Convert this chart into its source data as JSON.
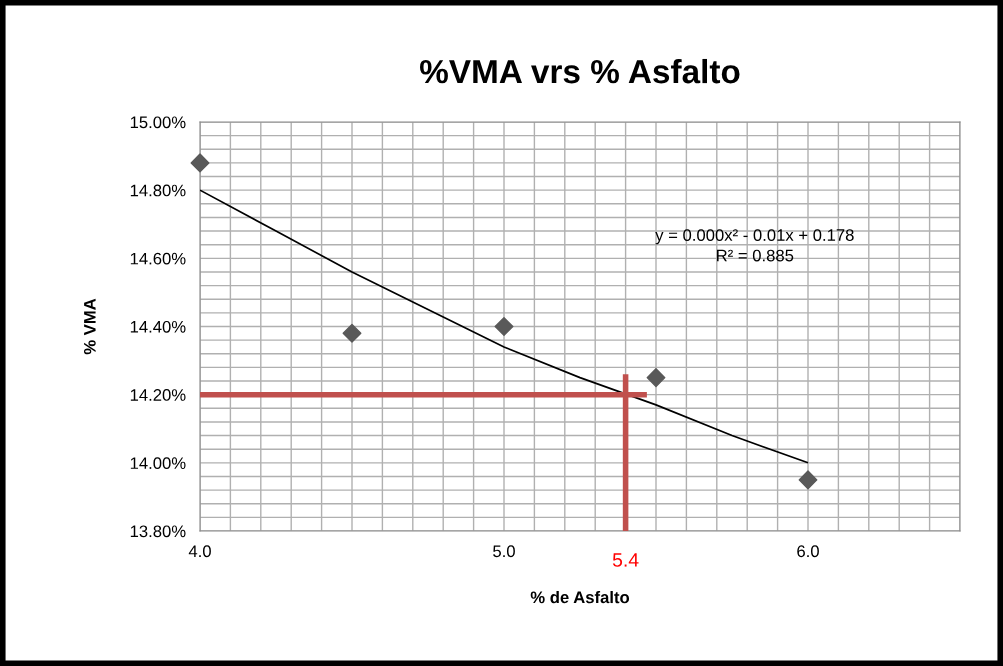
{
  "chart_data": {
    "type": "scatter",
    "title": "%VMA vrs % Asfalto",
    "xlabel": "% de Asfalto",
    "ylabel": "% VMA",
    "x": [
      4.0,
      4.5,
      5.0,
      5.5,
      6.0
    ],
    "series": [
      {
        "color": "#595959",
        "marker": "diamond",
        "values": [
          14.88,
          14.38,
          14.4,
          14.25,
          13.95
        ]
      },
      {
        "type": "line",
        "color": "#000000",
        "marker": "none",
        "x": [
          4.0,
          4.25,
          4.5,
          4.75,
          5.0,
          5.25,
          5.5,
          5.75,
          6.0
        ],
        "values": [
          14.8,
          14.68,
          14.56,
          14.45,
          14.34,
          14.25,
          14.17,
          14.08,
          14.0
        ]
      },
      {
        "type": "line",
        "color": "#c0504d",
        "marker": "none",
        "x": [
          4.0,
          5.47
        ],
        "values": [
          14.2,
          14.2
        ]
      },
      {
        "type": "line",
        "color": "#c0504d",
        "marker": "none",
        "x": [
          5.4,
          5.4
        ],
        "values": [
          13.8,
          14.26
        ]
      }
    ],
    "xlim": [
      4.0,
      6.5
    ],
    "ylim": [
      13.8,
      15.0
    ],
    "xticks": [
      {
        "value": 4.0,
        "label": "4.0"
      },
      {
        "value": 4.1,
        "label": null
      },
      {
        "value": 4.2,
        "label": null
      },
      {
        "value": 4.3,
        "label": null
      },
      {
        "value": 4.4,
        "label": null
      },
      {
        "value": 4.5,
        "label": null
      },
      {
        "value": 4.6,
        "label": null
      },
      {
        "value": 4.7,
        "label": null
      },
      {
        "value": 4.8,
        "label": null
      },
      {
        "value": 4.9,
        "label": null
      },
      {
        "value": 5.0,
        "label": "5.0"
      },
      {
        "value": 5.1,
        "label": null
      },
      {
        "value": 5.2,
        "label": null
      },
      {
        "value": 5.3,
        "label": null
      },
      {
        "value": 5.4,
        "label": null
      },
      {
        "value": 5.5,
        "label": null
      },
      {
        "value": 5.6,
        "label": null
      },
      {
        "value": 5.7,
        "label": null
      },
      {
        "value": 5.8,
        "label": null
      },
      {
        "value": 5.9,
        "label": null
      },
      {
        "value": 6.0,
        "label": "6.0"
      },
      {
        "value": 6.1,
        "label": null
      },
      {
        "value": 6.2,
        "label": null
      },
      {
        "value": 6.3,
        "label": null
      },
      {
        "value": 6.4,
        "label": null
      },
      {
        "value": 6.5,
        "label": null
      }
    ],
    "yticks": [
      {
        "value": 13.8,
        "label": "13.80%"
      },
      {
        "value": 13.84,
        "label": null
      },
      {
        "value": 13.88,
        "label": null
      },
      {
        "value": 13.92,
        "label": null
      },
      {
        "value": 13.96,
        "label": null
      },
      {
        "value": 14.0,
        "label": "14.00%"
      },
      {
        "value": 14.04,
        "label": null
      },
      {
        "value": 14.08,
        "label": null
      },
      {
        "value": 14.12,
        "label": null
      },
      {
        "value": 14.16,
        "label": null
      },
      {
        "value": 14.2,
        "label": "14.20%"
      },
      {
        "value": 14.24,
        "label": null
      },
      {
        "value": 14.28,
        "label": null
      },
      {
        "value": 14.32,
        "label": null
      },
      {
        "value": 14.36,
        "label": null
      },
      {
        "value": 14.4,
        "label": "14.40%"
      },
      {
        "value": 14.44,
        "label": null
      },
      {
        "value": 14.48,
        "label": null
      },
      {
        "value": 14.52,
        "label": null
      },
      {
        "value": 14.56,
        "label": null
      },
      {
        "value": 14.6,
        "label": "14.60%"
      },
      {
        "value": 14.64,
        "label": null
      },
      {
        "value": 14.68,
        "label": null
      },
      {
        "value": 14.72,
        "label": null
      },
      {
        "value": 14.76,
        "label": null
      },
      {
        "value": 14.8,
        "label": "14.80%"
      },
      {
        "value": 14.84,
        "label": null
      },
      {
        "value": 14.88,
        "label": null
      },
      {
        "value": 14.92,
        "label": null
      },
      {
        "value": 14.96,
        "label": null
      },
      {
        "value": 15.0,
        "label": "15.00%"
      }
    ],
    "grid": true,
    "legend": false,
    "annotations": [
      "y = 0.000x² - 0.01x + 0.178",
      "R² = 0.885",
      {
        "text": "5.4",
        "x": 5.4,
        "y": 13.8
      }
    ]
  }
}
